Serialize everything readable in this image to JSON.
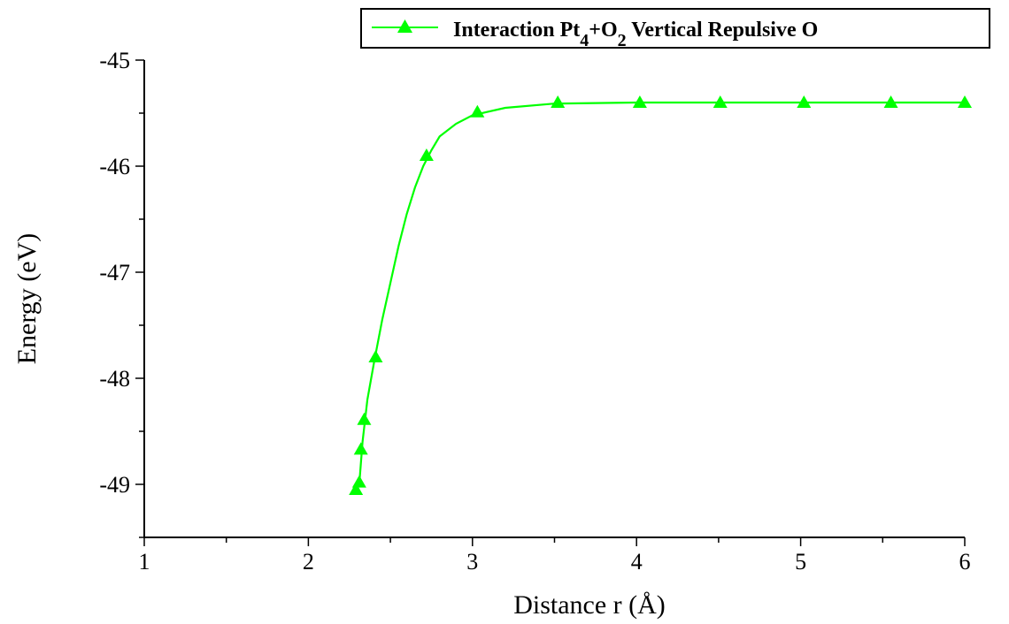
{
  "chart_data": {
    "type": "line",
    "title": "",
    "xlabel": "Distance r (Å)",
    "ylabel": "Energy (eV)",
    "xlim": [
      1,
      6
    ],
    "ylim": [
      -49.5,
      -45
    ],
    "x_ticks": [
      "1",
      "2",
      "3",
      "4",
      "5",
      "6"
    ],
    "y_ticks": [
      "-45",
      "-46",
      "-47",
      "-48",
      "-49"
    ],
    "legend_position": "top-right",
    "series": [
      {
        "name": "Interaction Pt4+O2 Vertical Repulsive O",
        "color": "#00ff00",
        "marker": "triangle",
        "points": [
          {
            "x": 2.29,
            "y": -49.05
          },
          {
            "x": 2.31,
            "y": -48.98
          },
          {
            "x": 2.32,
            "y": -48.67
          },
          {
            "x": 2.34,
            "y": -48.39
          },
          {
            "x": 2.41,
            "y": -47.8
          },
          {
            "x": 2.72,
            "y": -45.9
          },
          {
            "x": 3.03,
            "y": -45.49
          },
          {
            "x": 3.52,
            "y": -45.4
          },
          {
            "x": 4.02,
            "y": -45.4
          },
          {
            "x": 4.51,
            "y": -45.4
          },
          {
            "x": 5.02,
            "y": -45.4
          },
          {
            "x": 5.55,
            "y": -45.4
          },
          {
            "x": 6.0,
            "y": -45.4
          }
        ],
        "fit_curve": [
          {
            "x": 2.31,
            "y": -49.0
          },
          {
            "x": 2.33,
            "y": -48.6
          },
          {
            "x": 2.36,
            "y": -48.2
          },
          {
            "x": 2.4,
            "y": -47.85
          },
          {
            "x": 2.45,
            "y": -47.45
          },
          {
            "x": 2.5,
            "y": -47.1
          },
          {
            "x": 2.55,
            "y": -46.75
          },
          {
            "x": 2.6,
            "y": -46.45
          },
          {
            "x": 2.65,
            "y": -46.2
          },
          {
            "x": 2.7,
            "y": -46.0
          },
          {
            "x": 2.75,
            "y": -45.85
          },
          {
            "x": 2.8,
            "y": -45.72
          },
          {
            "x": 2.9,
            "y": -45.6
          },
          {
            "x": 3.0,
            "y": -45.52
          },
          {
            "x": 3.2,
            "y": -45.45
          },
          {
            "x": 3.5,
            "y": -45.41
          },
          {
            "x": 4.0,
            "y": -45.4
          },
          {
            "x": 5.0,
            "y": -45.4
          },
          {
            "x": 6.0,
            "y": -45.4
          }
        ]
      }
    ]
  }
}
